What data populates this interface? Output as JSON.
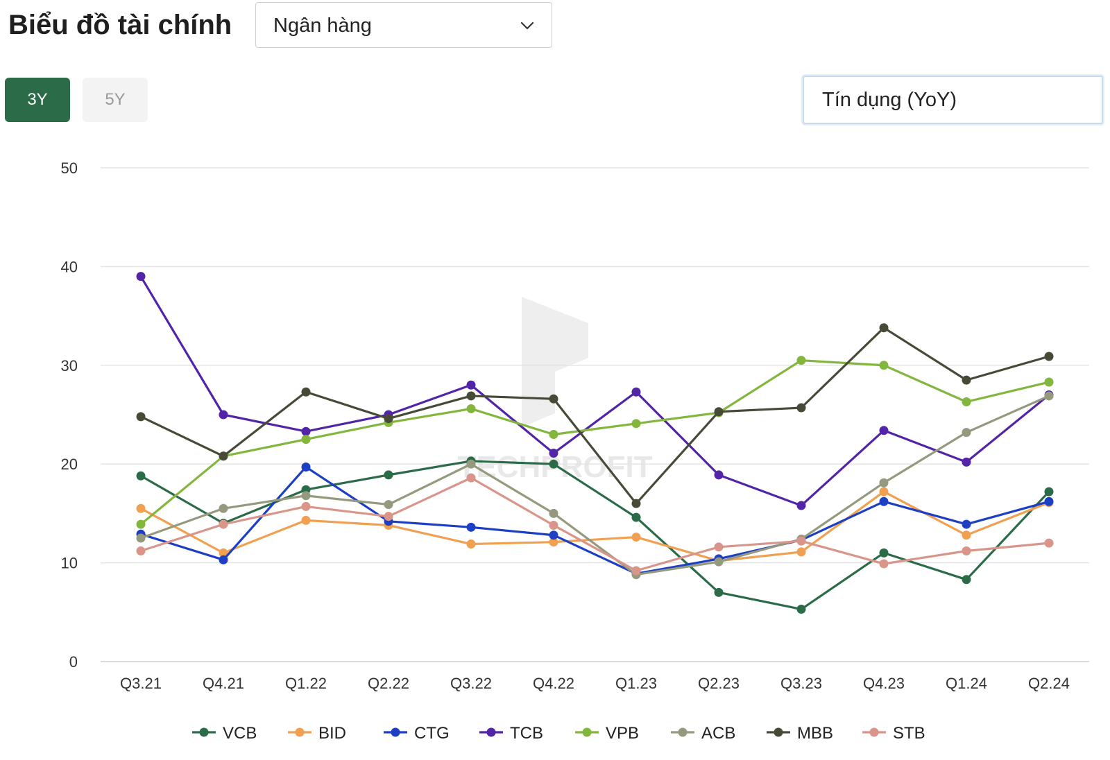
{
  "header": {
    "title": "Biểu đồ tài chính",
    "sector_select": "Ngân hàng",
    "metric_select": "Tín dụng (YoY)"
  },
  "range_buttons": [
    {
      "label": "3Y",
      "active": true
    },
    {
      "label": "5Y",
      "active": false
    }
  ],
  "watermark": "TECHPROFIT",
  "icons": {
    "dropdown": "chevron-down-icon"
  },
  "chart_data": {
    "type": "line",
    "title": "",
    "xlabel": "",
    "ylabel": "",
    "x": [
      "Q3.21",
      "Q4.21",
      "Q1.22",
      "Q2.22",
      "Q3.22",
      "Q4.22",
      "Q1.23",
      "Q2.23",
      "Q3.23",
      "Q4.23",
      "Q1.24",
      "Q2.24"
    ],
    "ylim": [
      0,
      50
    ],
    "yticks": [
      0,
      10,
      20,
      30,
      40,
      50
    ],
    "grid": true,
    "legend_position": "bottom",
    "series": [
      {
        "name": "VCB",
        "color": "#2b6b48",
        "values": [
          18.8,
          14.0,
          17.4,
          18.9,
          20.3,
          20.0,
          14.6,
          7.0,
          5.3,
          11.0,
          8.3,
          17.2
        ]
      },
      {
        "name": "BID",
        "color": "#f0a050",
        "values": [
          15.5,
          11.0,
          14.3,
          13.8,
          11.9,
          12.1,
          12.6,
          10.2,
          11.1,
          17.2,
          12.8,
          16.1
        ]
      },
      {
        "name": "CTG",
        "color": "#1c3fc4",
        "values": [
          12.9,
          10.3,
          19.7,
          14.2,
          13.6,
          12.8,
          8.9,
          10.4,
          12.3,
          16.2,
          13.9,
          16.2
        ]
      },
      {
        "name": "TCB",
        "color": "#5224a8",
        "values": [
          39.0,
          25.0,
          23.3,
          25.0,
          28.0,
          21.1,
          27.3,
          18.9,
          15.8,
          23.4,
          20.2,
          27.0
        ]
      },
      {
        "name": "VPB",
        "color": "#82b63c",
        "values": [
          13.9,
          20.8,
          22.5,
          24.2,
          25.6,
          23.0,
          24.1,
          25.2,
          30.5,
          30.0,
          26.3,
          28.3
        ]
      },
      {
        "name": "ACB",
        "color": "#959a7e",
        "values": [
          12.5,
          15.5,
          16.8,
          15.9,
          20.0,
          15.0,
          8.8,
          10.1,
          12.4,
          18.1,
          23.2,
          26.9
        ]
      },
      {
        "name": "MBB",
        "color": "#484a38",
        "values": [
          24.8,
          20.8,
          27.3,
          24.6,
          26.9,
          26.6,
          16.0,
          25.3,
          25.7,
          33.8,
          28.5,
          30.9
        ]
      },
      {
        "name": "STB",
        "color": "#d9958a",
        "values": [
          11.2,
          13.9,
          15.7,
          14.7,
          18.6,
          13.8,
          9.2,
          11.6,
          12.2,
          9.9,
          11.2,
          12.0
        ]
      }
    ]
  }
}
